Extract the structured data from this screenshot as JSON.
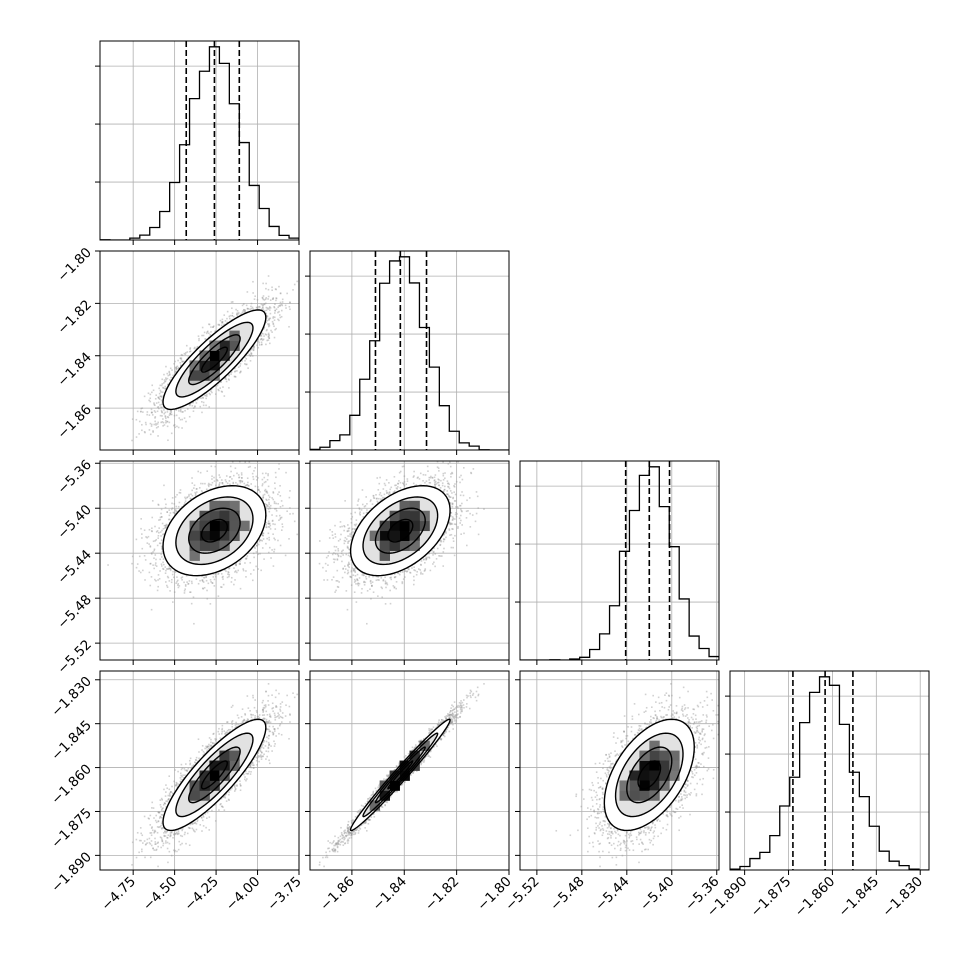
{
  "chart_data": {
    "type": "corner",
    "params": [
      {
        "ticks": [
          -4.75,
          -4.5,
          -4.25,
          -4.0,
          -3.75
        ],
        "tick_labels": [
          "−4.75",
          "−4.50",
          "−4.25",
          "−4.00",
          "−3.75"
        ],
        "range": [
          -4.95,
          -3.75
        ],
        "mean": -4.26,
        "sd": 0.155,
        "q16": -4.43,
        "q50": -4.26,
        "q84": -4.11
      },
      {
        "ticks": [
          -1.86,
          -1.84,
          -1.82,
          -1.8
        ],
        "tick_labels": [
          "−1.86",
          "−1.84",
          "−1.82",
          "−1.80"
        ],
        "range": [
          -1.876,
          -1.8
        ],
        "mean": -1.8415,
        "sd": 0.0095,
        "q16": -1.851,
        "q50": -1.8415,
        "q84": -1.8315
      },
      {
        "ticks": [
          -5.52,
          -5.48,
          -5.44,
          -5.4,
          -5.36
        ],
        "tick_labels": [
          "−5.52",
          "−5.48",
          "−5.44",
          "−5.40",
          "−5.36"
        ],
        "range": [
          -5.535,
          -5.358
        ],
        "mean": -5.42,
        "sd": 0.02,
        "q16": -5.441,
        "q50": -5.42,
        "q84": -5.402
      },
      {
        "ticks": [
          -1.89,
          -1.875,
          -1.86,
          -1.845,
          -1.83
        ],
        "tick_labels": [
          "−1.890",
          "−1.875",
          "−1.860",
          "−1.845",
          "−1.830"
        ],
        "range": [
          -1.895,
          -1.827
        ],
        "mean": -1.8625,
        "sd": 0.0095,
        "q16": -1.8735,
        "q50": -1.8625,
        "q84": -1.853
      }
    ],
    "correlations": [
      [
        1,
        0.85,
        0.35,
        0.85
      ],
      [
        0.85,
        1,
        0.45,
        0.985
      ],
      [
        0.35,
        0.45,
        1,
        0.5
      ],
      [
        0.85,
        0.985,
        0.5,
        1
      ]
    ],
    "histogram_bins": 20,
    "quantile_lines": [
      "16%",
      "50%",
      "84%"
    ],
    "contour_levels_sigma": [
      0.5,
      1.0,
      1.5,
      2.0
    ],
    "grid": true,
    "colors": {
      "points": "#9a9a9a",
      "contour": "#000000",
      "fill_dark": "#000000",
      "background": "#ffffff",
      "grid": "#b0b0b0"
    }
  }
}
